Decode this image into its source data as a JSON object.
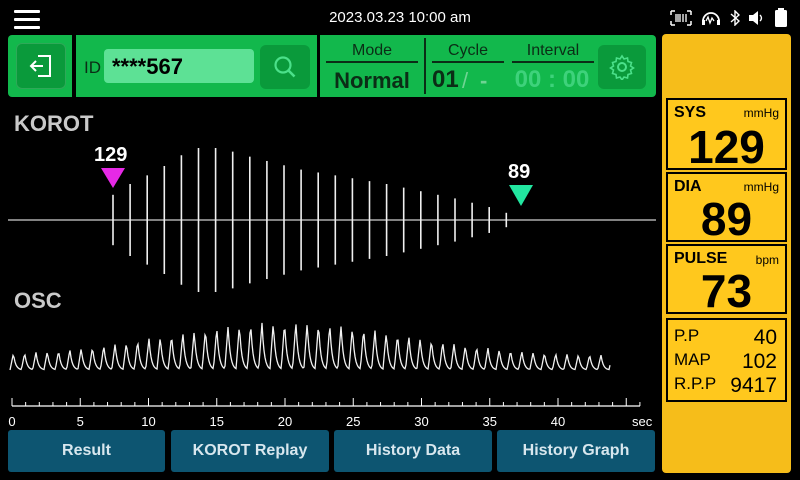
{
  "statusbar": {
    "datetime": "2023.03.23   10:00 am",
    "icons": [
      "menu-icon",
      "barcode-icon",
      "headset-icon",
      "bluetooth-icon",
      "volume-icon",
      "battery-icon"
    ]
  },
  "toolbar": {
    "id_label": "ID",
    "id_value": "****567",
    "mode_header": "Mode",
    "mode_value": "Normal",
    "cycle_header": "Cycle",
    "cycle_value": "01",
    "cycle_slash": "/",
    "cycle_max": "-",
    "interval_header": "Interval",
    "interval_value": "00 : 00"
  },
  "charts": {
    "korot_title": "KOROT",
    "osc_title": "OSC",
    "sys_marker": "129",
    "dia_marker": "89",
    "sys_marker_color": "#e629e6",
    "dia_marker_color": "#22e6a0",
    "korot_amplitudes": [
      0.35,
      0.5,
      0.62,
      0.75,
      0.9,
      1.0,
      1.0,
      0.95,
      0.88,
      0.82,
      0.76,
      0.7,
      0.66,
      0.62,
      0.58,
      0.54,
      0.5,
      0.45,
      0.4,
      0.35,
      0.3,
      0.24,
      0.18,
      0.1
    ],
    "x_axis_ticks": [
      "0",
      "5",
      "10",
      "15",
      "20",
      "25",
      "30",
      "35",
      "40"
    ],
    "x_axis_unit": "sec"
  },
  "buttons": {
    "result": "Result",
    "korot_replay": "KOROT Replay",
    "history_data": "History Data",
    "history_graph": "History Graph"
  },
  "readings": {
    "sys_label": "SYS",
    "sys_unit": "mmHg",
    "sys_value": "129",
    "dia_label": "DIA",
    "dia_unit": "mmHg",
    "dia_value": "89",
    "pulse_label": "PULSE",
    "pulse_unit": "bpm",
    "pulse_value": "73",
    "pp_label": "P.P",
    "pp_value": "40",
    "map_label": "MAP",
    "map_value": "102",
    "rpp_label": "R.P.P",
    "rpp_value": "9417"
  },
  "colors": {
    "toolbar_green": "#12b84c",
    "button_blue": "#0d5571",
    "panel_yellow": "#f6bd1a"
  }
}
